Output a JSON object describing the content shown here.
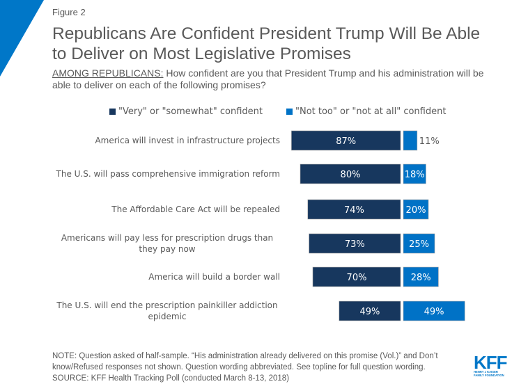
{
  "figure_label": "Figure 2",
  "title": "Republicans Are Confident President Trump Will Be Able to Deliver on Most Legislative Promises",
  "subtitle": {
    "lead": "AMONG REPUBLICANS:",
    "text": " How confident are you that President Trump and his administration will be able to deliver on each of the following promises?"
  },
  "colors": {
    "confident": "#17375e",
    "not_confident": "#0072c6",
    "corner_accent": "#0077c8",
    "text": "#595959"
  },
  "chart_data": {
    "type": "bar",
    "orientation": "horizontal-diverging",
    "title": "Republicans Are Confident President Trump Will Be Able to Deliver on Most Legislative Promises",
    "xlabel": "",
    "ylabel": "",
    "unit": "%",
    "legend_position": "top",
    "categories": [
      "America will invest in infrastructure projects",
      "The U.S. will pass comprehensive immigration reform",
      "The Affordable Care Act will be repealed",
      "Americans will pay less for prescription drugs than they pay now",
      "America will build a border wall",
      "The U.S. will end the prescription painkiller addiction epidemic"
    ],
    "series": [
      {
        "name": "\"Very\" or \"somewhat\" confident",
        "values": [
          87,
          80,
          74,
          73,
          70,
          49
        ]
      },
      {
        "name": "\"Not too\" or \"not at all\" confident",
        "values": [
          11,
          18,
          20,
          25,
          28,
          49
        ]
      }
    ],
    "data_labels": [
      [
        "87%",
        "80%",
        "74%",
        "73%",
        "70%",
        "49%"
      ],
      [
        "11%",
        "18%",
        "20%",
        "25%",
        "28%",
        "49%"
      ]
    ]
  },
  "legend": [
    {
      "label": "\"Very\" or \"somewhat\" confident"
    },
    {
      "label": "\"Not too\" or \"not at all\" confident"
    }
  ],
  "note": "NOTE: Question asked of half-sample. “His administration already delivered on this promise (Vol.)” and Don’t know/Refused responses not shown. Question wording abbreviated. See topline for full question wording.",
  "source": "SOURCE: KFF Health Tracking Poll (conducted March 8-13, 2018)",
  "logo": {
    "main": "KFF",
    "line1": "HENRY J KAISER",
    "line2": "FAMILY FOUNDATION"
  }
}
